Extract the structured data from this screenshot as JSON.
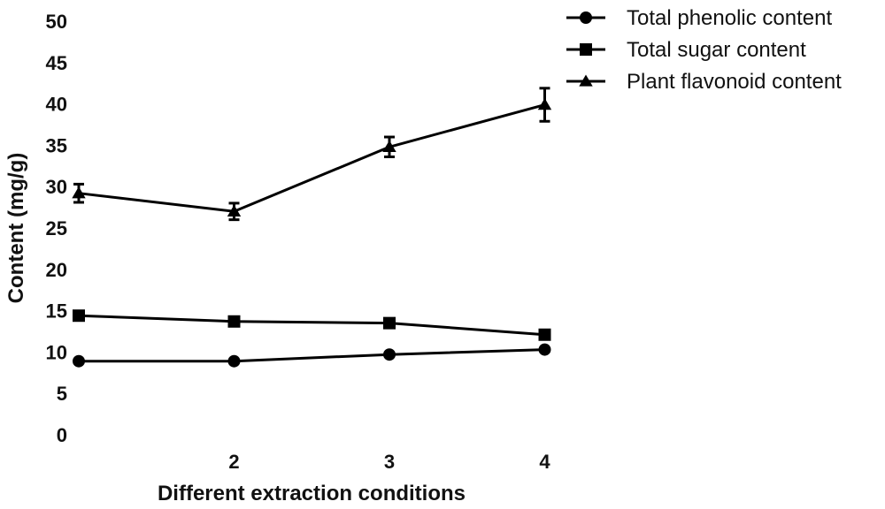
{
  "chart_data": {
    "type": "line",
    "title": "",
    "xlabel": "Different extraction conditions",
    "ylabel": "Content (mg/g)",
    "x": [
      1,
      2,
      3,
      4
    ],
    "x_tick_labels": [
      "",
      "2",
      "3",
      "4"
    ],
    "ylim": [
      0,
      50
    ],
    "yticks": [
      0,
      5,
      10,
      15,
      20,
      25,
      30,
      35,
      40,
      45,
      50
    ],
    "grid": false,
    "legend_position": "top-right",
    "series": [
      {
        "name": "Total phenolic content",
        "marker": "circle",
        "color": "#000000",
        "values": [
          8.9,
          8.9,
          9.7,
          10.3
        ],
        "errors": [
          0,
          0,
          0,
          0
        ]
      },
      {
        "name": "Total sugar content",
        "marker": "square",
        "color": "#000000",
        "values": [
          14.4,
          13.7,
          13.5,
          12.1
        ],
        "errors": [
          0,
          0,
          0,
          0
        ]
      },
      {
        "name": "Plant flavonoid content",
        "marker": "triangle",
        "color": "#000000",
        "values": [
          29.2,
          27.0,
          34.8,
          39.9
        ],
        "errors": [
          1.1,
          1.0,
          1.2,
          2.0
        ]
      }
    ]
  }
}
